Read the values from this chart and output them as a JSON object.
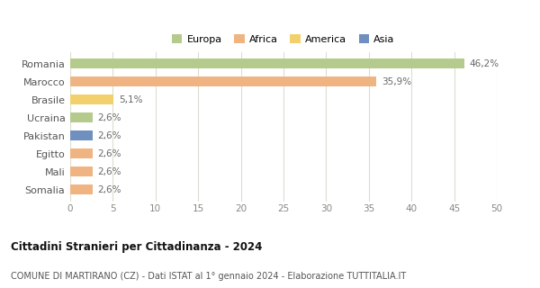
{
  "categories": [
    "Romania",
    "Marocco",
    "Brasile",
    "Ucraina",
    "Pakistan",
    "Egitto",
    "Mali",
    "Somalia"
  ],
  "values": [
    46.2,
    35.9,
    5.1,
    2.6,
    2.6,
    2.6,
    2.6,
    2.6
  ],
  "labels": [
    "46,2%",
    "35,9%",
    "5,1%",
    "2,6%",
    "2,6%",
    "2,6%",
    "2,6%",
    "2,6%"
  ],
  "colors": [
    "#b5ca8d",
    "#f0b482",
    "#f2d06b",
    "#b5ca8d",
    "#6f8fbe",
    "#f0b482",
    "#f0b482",
    "#f0b482"
  ],
  "legend": [
    {
      "label": "Europa",
      "color": "#b5ca8d"
    },
    {
      "label": "Africa",
      "color": "#f0b482"
    },
    {
      "label": "America",
      "color": "#f2d06b"
    },
    {
      "label": "Asia",
      "color": "#6f8fbe"
    }
  ],
  "xlim": [
    0,
    50
  ],
  "xticks": [
    0,
    5,
    10,
    15,
    20,
    25,
    30,
    35,
    40,
    45,
    50
  ],
  "title": "Cittadini Stranieri per Cittadinanza - 2024",
  "subtitle": "COMUNE DI MARTIRANO (CZ) - Dati ISTAT al 1° gennaio 2024 - Elaborazione TUTTITALIA.IT",
  "background_color": "#ffffff",
  "grid_color": "#d8e0d0"
}
